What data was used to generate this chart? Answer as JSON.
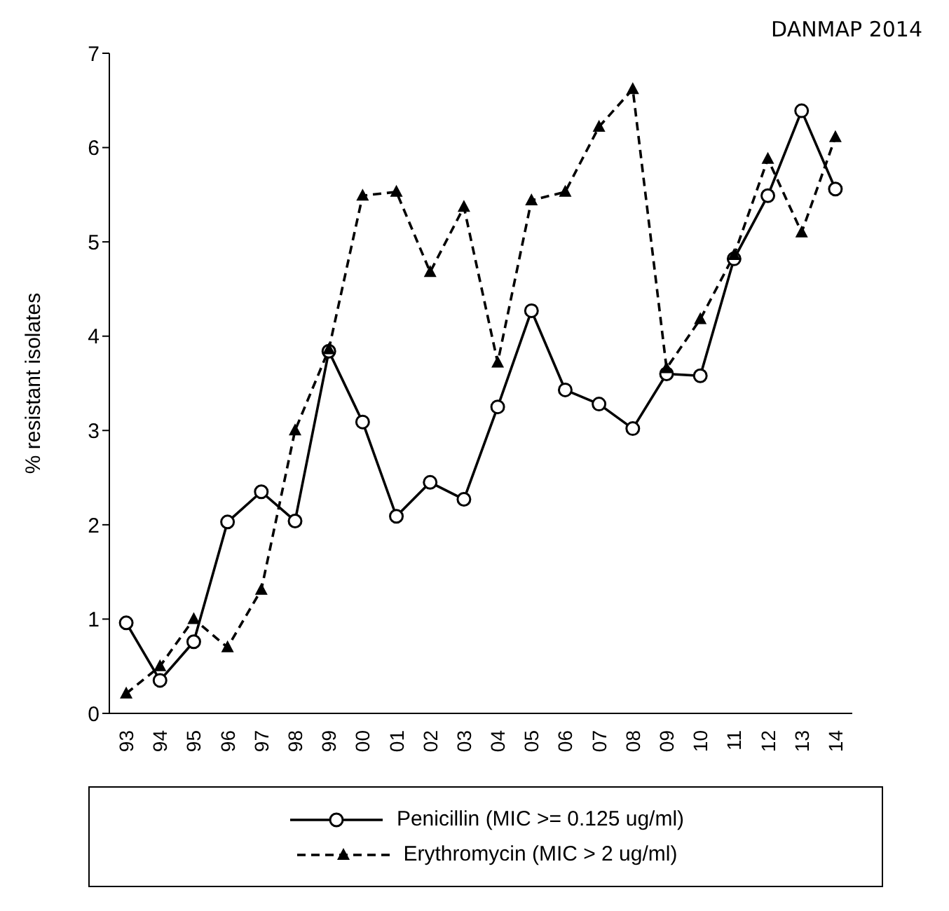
{
  "chart_data": {
    "type": "line",
    "title": "DANMAP 2014",
    "ylabel": "% resistant  isolates",
    "categories": [
      "93",
      "94",
      "95",
      "96",
      "97",
      "98",
      "99",
      "00",
      "01",
      "02",
      "03",
      "04",
      "05",
      "06",
      "07",
      "08",
      "09",
      "10",
      "11",
      "12",
      "13",
      "14"
    ],
    "series": [
      {
        "name": "Penicillin  (MIC >= 0.125 ug/ml)",
        "color": "#000000",
        "marker": "circle",
        "line_style": "solid",
        "values": [
          0.96,
          0.35,
          0.76,
          2.03,
          2.35,
          2.04,
          3.84,
          3.09,
          2.09,
          2.45,
          2.27,
          3.25,
          4.27,
          3.43,
          3.28,
          3.02,
          3.6,
          3.58,
          4.82,
          5.49,
          6.39,
          5.56
        ]
      },
      {
        "name": "Erythromycin  (MIC > 2 ug/ml)",
        "color": "#000000",
        "marker": "triangle",
        "line_style": "dashed",
        "values": [
          0.21,
          0.5,
          1.0,
          0.7,
          1.31,
          3.0,
          3.86,
          5.49,
          5.53,
          4.68,
          5.37,
          3.72,
          5.44,
          5.53,
          6.22,
          6.62,
          3.66,
          4.18,
          4.86,
          5.88,
          5.1,
          6.11
        ]
      }
    ],
    "ylim": [
      0,
      7
    ],
    "yticks": [
      0,
      1,
      2,
      3,
      4,
      5,
      6,
      7
    ],
    "grid": false,
    "legend": "bottom"
  }
}
